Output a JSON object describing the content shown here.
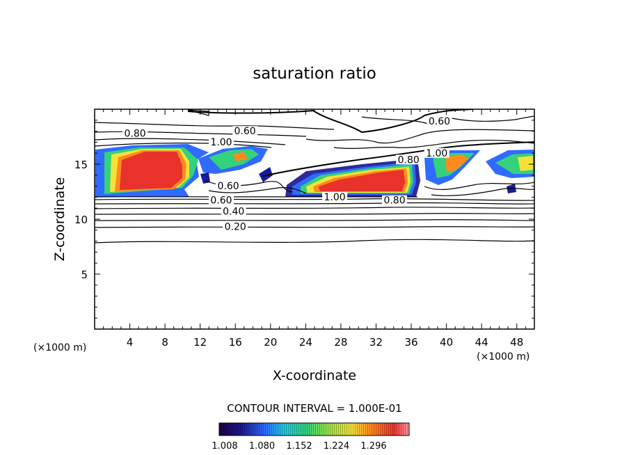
{
  "chart_data": {
    "type": "contour",
    "title": "saturation ratio",
    "xlabel": "X-coordinate",
    "ylabel": "Z-coordinate",
    "x_unit_left": "(×1000 m)",
    "x_unit_right": "(×1000 m)",
    "xlim": [
      0,
      50
    ],
    "ylim": [
      0,
      20
    ],
    "xticks": [
      4,
      8,
      12,
      16,
      20,
      24,
      28,
      32,
      36,
      40,
      44,
      48
    ],
    "yticks": [
      5,
      10,
      15
    ],
    "contour_interval_label": "CONTOUR INTERVAL = 1.000E-01",
    "contour_labels": [
      {
        "text": "0.60",
        "x": 17.1,
        "z": 17.9
      },
      {
        "text": "0.80",
        "x": 4.6,
        "z": 17.7
      },
      {
        "text": "1.00",
        "x": 14.4,
        "z": 16.9
      },
      {
        "text": "0.60",
        "x": 39.2,
        "z": 18.8
      },
      {
        "text": "0.80",
        "x": 35.7,
        "z": 15.3
      },
      {
        "text": "1.00",
        "x": 38.9,
        "z": 15.9
      },
      {
        "text": "1.00",
        "x": 27.3,
        "z": 11.9
      },
      {
        "text": "0.80",
        "x": 34.1,
        "z": 11.6
      },
      {
        "text": "0.60",
        "x": 15.2,
        "z": 12.9
      },
      {
        "text": "0.40",
        "x": 15.8,
        "z": 10.6
      },
      {
        "text": "0.60",
        "x": 14.4,
        "z": 11.6
      },
      {
        "text": "0.20",
        "x": 16.0,
        "z": 9.2
      }
    ],
    "contour_levels": [
      0.2,
      0.4,
      0.6,
      0.8,
      1.0
    ],
    "shaded_threshold": 1.008,
    "shaded_regions": [
      {
        "x_range": [
          0,
          12
        ],
        "z_range": [
          11.8,
          16.5
        ],
        "peak": 1.3
      },
      {
        "x_range": [
          22,
          37
        ],
        "z_range": [
          12.3,
          15.5
        ],
        "peak": 1.3
      },
      {
        "x_range": [
          36,
          50
        ],
        "z_range": [
          12.8,
          16.2
        ],
        "peak": 1.2
      }
    ],
    "colorbar": {
      "ticks": [
        "1.008",
        "1.080",
        "1.152",
        "1.224",
        "1.296"
      ],
      "colors": [
        "#20003a",
        "#1a1a9c",
        "#2f6bff",
        "#1fc9e6",
        "#34d27a",
        "#9fe244",
        "#f4e23a",
        "#ff8a1f",
        "#f0332e",
        "#ff9aa0"
      ]
    }
  }
}
